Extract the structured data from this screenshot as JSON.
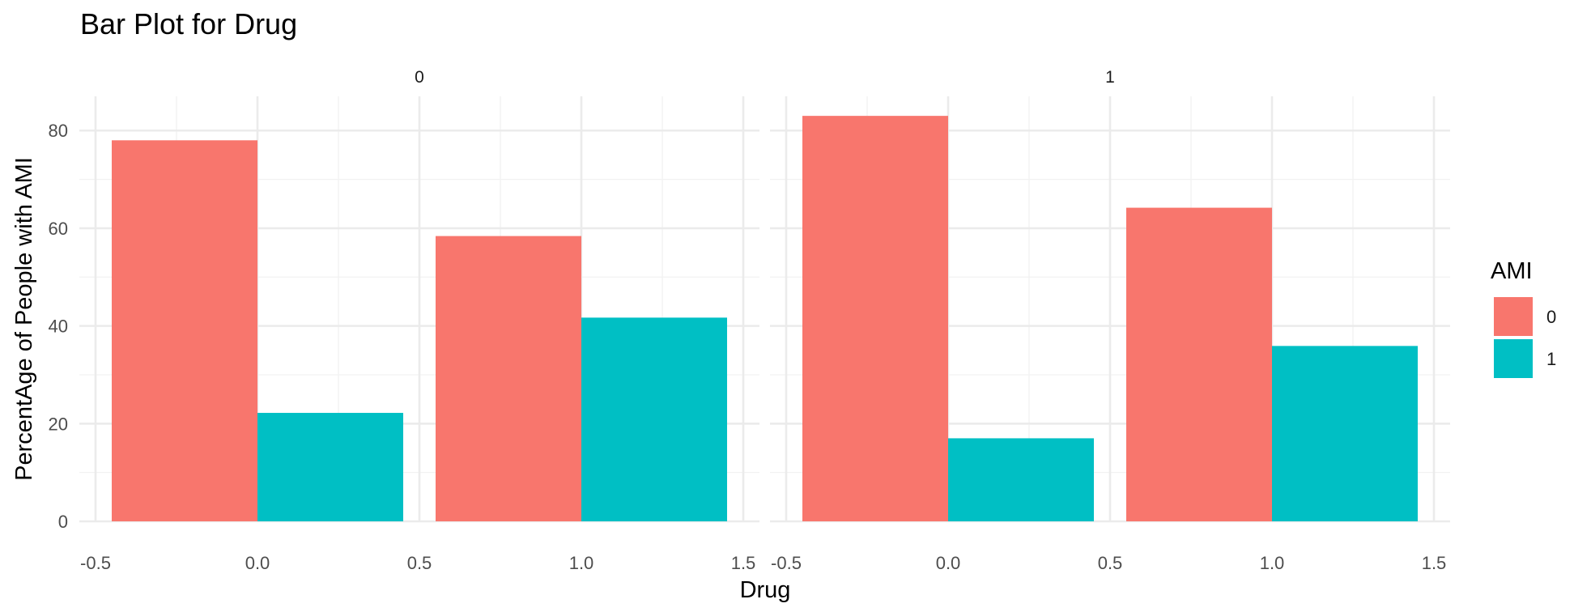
{
  "chart_data": {
    "type": "bar",
    "title": "Bar Plot for Drug",
    "xlabel": "Drug",
    "ylabel": "PercentAge of People with AMI",
    "ylim": [
      0,
      87
    ],
    "xlim": [
      -0.5,
      1.5
    ],
    "x_ticks": [
      "-0.5",
      "0.0",
      "0.5",
      "1.0",
      "1.5"
    ],
    "y_ticks": [
      "0",
      "20",
      "40",
      "60",
      "80"
    ],
    "grid": true,
    "legend": {
      "title": "AMI",
      "position": "right",
      "entries": [
        "0",
        "1"
      ]
    },
    "colors": {
      "0": "#F8766D",
      "1": "#00BFC4"
    },
    "facets": [
      {
        "label": "0",
        "bars": [
          {
            "drug": 0,
            "ami": "0",
            "value": 78.0
          },
          {
            "drug": 0,
            "ami": "1",
            "value": 22.2
          },
          {
            "drug": 1,
            "ami": "0",
            "value": 58.4
          },
          {
            "drug": 1,
            "ami": "1",
            "value": 41.7
          }
        ]
      },
      {
        "label": "1",
        "bars": [
          {
            "drug": 0,
            "ami": "0",
            "value": 83.0
          },
          {
            "drug": 0,
            "ami": "1",
            "value": 17.0
          },
          {
            "drug": 1,
            "ami": "0",
            "value": 64.2
          },
          {
            "drug": 1,
            "ami": "1",
            "value": 35.9
          }
        ]
      }
    ]
  }
}
